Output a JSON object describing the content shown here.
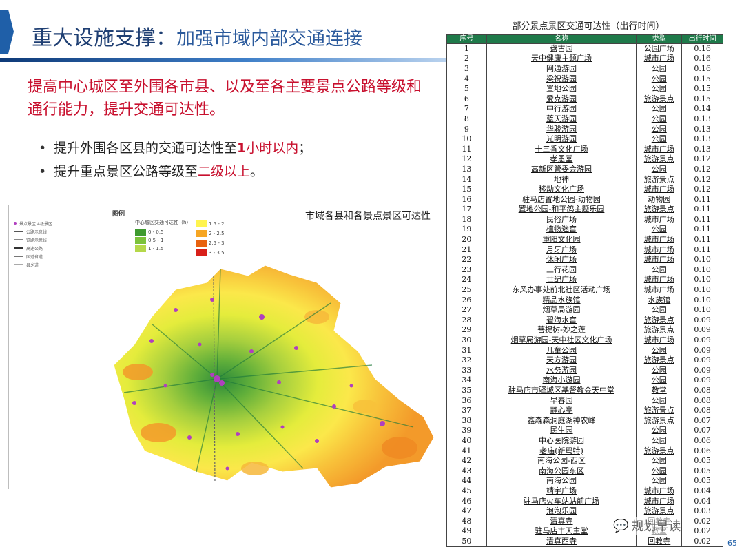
{
  "header": {
    "title_main": "重大设施支撑：",
    "title_sub": "加强市域内部交通连接"
  },
  "lead_text": "提高中心城区至外围各市县、以及至各主要景点公路等级和通行能力，提升交通可达性。",
  "bullets": [
    {
      "pre": "提升外围各区县的交通可达性至",
      "bold": "1",
      "red": "小时以内",
      "post": "；"
    },
    {
      "pre": "提升重点景区公路等级至",
      "bold": "",
      "red": "二级以上",
      "post": "。"
    }
  ],
  "map": {
    "caption": "市域各县和各景点景区可达性",
    "legend_title": "图例",
    "legend_left": [
      "景点景区 A级景区",
      "公路示意线",
      "铁路示意线",
      "高速公路",
      "国道省道",
      "县乡道"
    ],
    "legend_center_head": "中心城区交通可达性（h）",
    "legend_colors": [
      "#3e9a2f",
      "#7cc23a",
      "#b5d84a",
      "#fff44f",
      "#f6a623",
      "#e8620f",
      "#d8201a"
    ],
    "legend_values_left": [
      "0 - 0.5",
      "0.5 - 1",
      "1 - 1.5"
    ],
    "legend_values_right": [
      "1.5 - 2",
      "2 - 2.5",
      "2.5 - 3",
      "3 - 3.5"
    ]
  },
  "table": {
    "title": "部分景点景区交通可达性（出行时间）",
    "headers": [
      "序号",
      "名称",
      "类型",
      "出行时间"
    ],
    "rows": [
      [
        "1",
        "盘古园",
        "公园广场",
        "0.16"
      ],
      [
        "2",
        "天中健康主题广场",
        "城市广场",
        "0.16"
      ],
      [
        "3",
        "网通游园",
        "公园",
        "0.16"
      ],
      [
        "4",
        "梁祝游园",
        "公园",
        "0.15"
      ],
      [
        "5",
        "置地公园",
        "公园",
        "0.15"
      ],
      [
        "6",
        "爱克游园",
        "旅游景点",
        "0.15"
      ],
      [
        "7",
        "中行游园",
        "公园",
        "0.14"
      ],
      [
        "8",
        "蓝天游园",
        "公园",
        "0.13"
      ],
      [
        "9",
        "华骏游园",
        "公园",
        "0.13"
      ],
      [
        "10",
        "光明游园",
        "公园",
        "0.13"
      ],
      [
        "11",
        "十三香文化广场",
        "城市广场",
        "0.13"
      ],
      [
        "12",
        "孝恩堂",
        "旅游景点",
        "0.12"
      ],
      [
        "13",
        "高新区管委会游园",
        "公园",
        "0.12"
      ],
      [
        "14",
        "地神",
        "旅游景点",
        "0.12"
      ],
      [
        "15",
        "移动文化广场",
        "城市广场",
        "0.12"
      ],
      [
        "16",
        "驻马店置地公园-动物园",
        "动物园",
        "0.11"
      ],
      [
        "17",
        "置地公园-和平鸽主题乐园",
        "旅游景点",
        "0.11"
      ],
      [
        "18",
        "民俗广场",
        "城市广场",
        "0.11"
      ],
      [
        "19",
        "植物迷宫",
        "公园",
        "0.11"
      ],
      [
        "20",
        "重阳文化园",
        "城市广场",
        "0.11"
      ],
      [
        "21",
        "月牙广场",
        "城市广场",
        "0.11"
      ],
      [
        "22",
        "休闲广场",
        "城市广场",
        "0.10"
      ],
      [
        "23",
        "工行花园",
        "公园",
        "0.10"
      ],
      [
        "24",
        "世纪广场",
        "城市广场",
        "0.10"
      ],
      [
        "25",
        "东风办事处前北社区活动广场",
        "城市广场",
        "0.10"
      ],
      [
        "26",
        "精品水族馆",
        "水族馆",
        "0.10"
      ],
      [
        "27",
        "烟草局游园",
        "公园",
        "0.10"
      ],
      [
        "28",
        "碧海水宫",
        "旅游景点",
        "0.09"
      ],
      [
        "29",
        "菩提树-妙之莲",
        "旅游景点",
        "0.09"
      ],
      [
        "30",
        "烟草局游园-天中社区文化广场",
        "城市广场",
        "0.09"
      ],
      [
        "31",
        "儿童公园",
        "公园",
        "0.09"
      ],
      [
        "32",
        "天方游园",
        "旅游景点",
        "0.09"
      ],
      [
        "33",
        "水务游园",
        "公园",
        "0.09"
      ],
      [
        "34",
        "南海小游园",
        "公园",
        "0.09"
      ],
      [
        "35",
        "驻马店市驿城区基督教会天中堂",
        "教堂",
        "0.08"
      ],
      [
        "36",
        "早春园",
        "公园",
        "0.08"
      ],
      [
        "37",
        "静心亭",
        "旅游景点",
        "0.08"
      ],
      [
        "38",
        "鑫森森洞庭湖神农峰",
        "旅游景点",
        "0.07"
      ],
      [
        "39",
        "民生园",
        "公园",
        "0.07"
      ],
      [
        "40",
        "中心医院游园",
        "公园",
        "0.06"
      ],
      [
        "41",
        "老庙(新玛特)",
        "旅游景点",
        "0.06"
      ],
      [
        "42",
        "南海公园-西区",
        "公园",
        "0.05"
      ],
      [
        "43",
        "南海公园东区",
        "公园",
        "0.05"
      ],
      [
        "44",
        "南海公园",
        "公园",
        "0.05"
      ],
      [
        "45",
        "靖宇广场",
        "城市广场",
        "0.04"
      ],
      [
        "46",
        "驻马店火车站站前广场",
        "城市广场",
        "0.04"
      ],
      [
        "47",
        "泡泡乐园",
        "旅游景点",
        "0.03"
      ],
      [
        "48",
        "清真寺",
        "回教寺",
        "0.02"
      ],
      [
        "49",
        "驻马店市天主堂",
        "教堂",
        "0.02"
      ],
      [
        "50",
        "清真西寺",
        "回教寺",
        "0.02"
      ]
    ]
  },
  "watermark": "规划早读",
  "page_number": "65"
}
